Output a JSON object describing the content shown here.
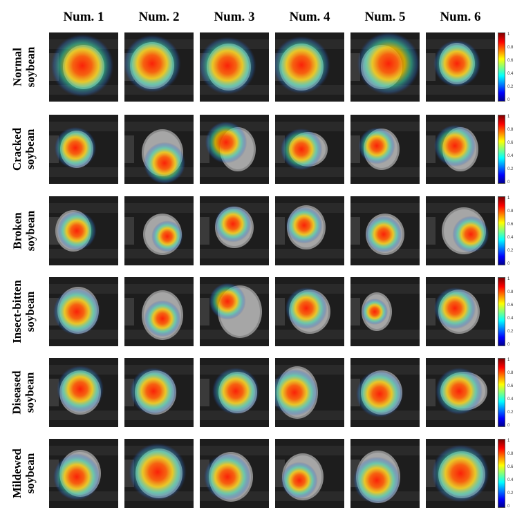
{
  "columns": [
    "Num. 1",
    "Num. 2",
    "Num. 3",
    "Num. 4",
    "Num. 5",
    "Num. 6"
  ],
  "rows": [
    {
      "line1": "Normal",
      "line2": "soybean"
    },
    {
      "line1": "Cracked",
      "line2": "soybean"
    },
    {
      "line1": "Broken",
      "line2": "soybean"
    },
    {
      "line1": "Insect-bitten",
      "line2": "soybean"
    },
    {
      "line1": "Diseased",
      "line2": "soybean"
    },
    {
      "line1": "Mildewed",
      "line2": "soybean"
    }
  ],
  "colorbar_ticks": [
    "1",
    "0.8",
    "0.6",
    "0.4",
    "0.2",
    "0"
  ]
}
